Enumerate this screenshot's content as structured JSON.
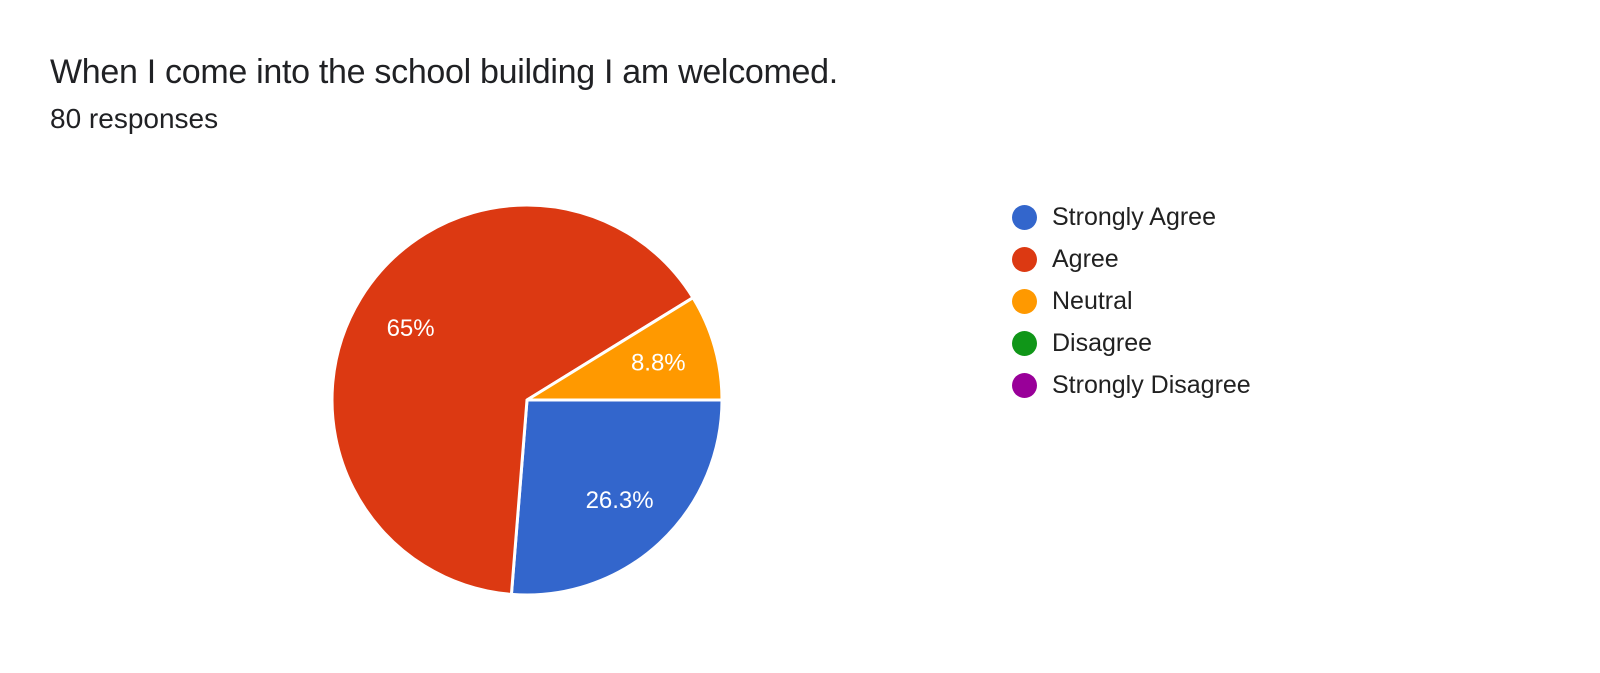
{
  "page": {
    "background": "#ffffff",
    "text_color": "#202124"
  },
  "chart_data": {
    "type": "pie",
    "title": "When I come into the school building I am welcomed.",
    "subtitle": "80 responses",
    "legend_position": "right",
    "start_angle_deg": 0,
    "direction": "clockwise",
    "slice_label_color": "#ffffff",
    "slice_separator_color": "#ffffff",
    "series": [
      {
        "name": "Strongly Agree",
        "percent": 26.3,
        "label": "26.3%",
        "color": "#3366CC"
      },
      {
        "name": "Agree",
        "percent": 65,
        "label": "65%",
        "color": "#DC3912"
      },
      {
        "name": "Neutral",
        "percent": 8.8,
        "label": "8.8%",
        "color": "#FF9900"
      },
      {
        "name": "Disagree",
        "percent": 0,
        "label": "",
        "color": "#109618"
      },
      {
        "name": "Strongly Disagree",
        "percent": 0,
        "label": "",
        "color": "#990099"
      }
    ]
  }
}
